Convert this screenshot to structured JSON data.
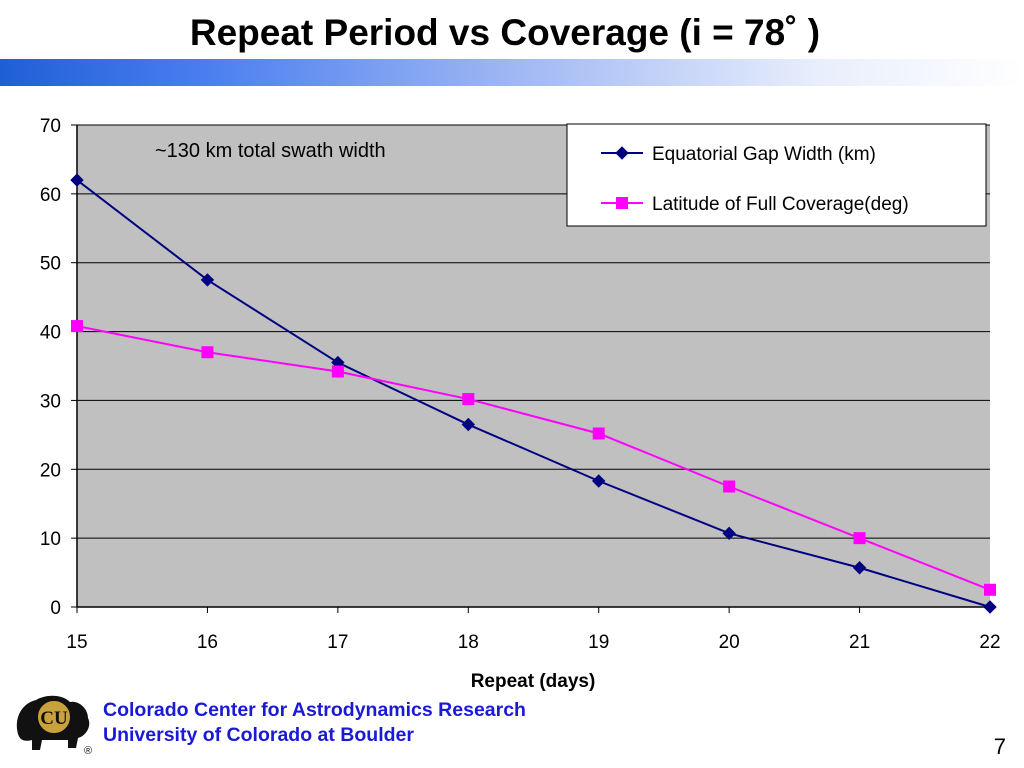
{
  "slide": {
    "title": "Repeat Period vs Coverage (i = 78˚ )",
    "org_line1": "Colorado Center for Astrodynamics Research",
    "org_line2": "University of Colorado at Boulder",
    "page_number": "7",
    "logo_text": "CU",
    "logo_mark": "®"
  },
  "colors": {
    "title_bar_start": "#1f5fd6",
    "plot_background": "#c0c0c0",
    "org_text": "#1a1ad6"
  },
  "chart_data": {
    "type": "line",
    "title": "",
    "xlabel": "Repeat (days)",
    "ylabel": "",
    "x": [
      15,
      16,
      17,
      18,
      19,
      20,
      21,
      22
    ],
    "xlim": [
      15,
      22
    ],
    "ylim": [
      0,
      70
    ],
    "yticks": [
      0,
      10,
      20,
      30,
      40,
      50,
      60,
      70
    ],
    "grid": true,
    "legend_position": "top-right",
    "annotation": "~130 km total swath width",
    "series": [
      {
        "name": "Equatorial Gap Width (km)",
        "color": "#000080",
        "marker": "diamond",
        "values": [
          62,
          47.5,
          35.5,
          26.5,
          18.3,
          10.7,
          5.7,
          0
        ]
      },
      {
        "name": "Latitude of Full Coverage(deg)",
        "color": "#ff00ff",
        "marker": "square",
        "values": [
          40.8,
          37,
          34.2,
          30.2,
          25.2,
          17.5,
          10,
          2.5
        ]
      }
    ]
  }
}
